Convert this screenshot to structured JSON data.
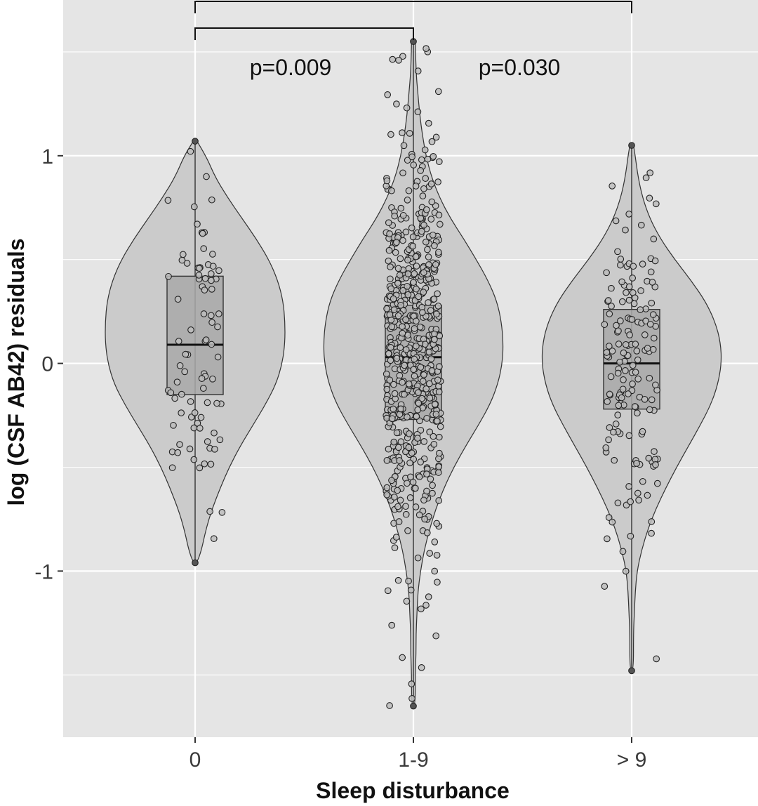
{
  "chart_data": {
    "type": "violin",
    "xlabel": "Sleep disturbance",
    "ylabel": "log (CSF AB42) residuals",
    "categories": [
      "0",
      "1-9",
      "> 9"
    ],
    "ylim": [
      -1.8,
      1.75
    ],
    "yticks": [
      -1,
      0,
      1
    ],
    "yticks_labels": [
      "-1",
      "0",
      "1"
    ],
    "grid": true,
    "background": "#e5e5e5",
    "violin_fill": "#cbcbcb",
    "box_fill": "#a9a9a9",
    "point_fill": "#bdbdbd",
    "groups": [
      {
        "category": "0",
        "box": {
          "q1": -0.15,
          "median": 0.09,
          "q3": 0.42,
          "whisker_low": -0.96,
          "whisker_high": 1.07
        },
        "violin": [
          [
            1.07,
            0.02
          ],
          [
            1.0,
            0.12
          ],
          [
            0.9,
            0.22
          ],
          [
            0.8,
            0.36
          ],
          [
            0.7,
            0.52
          ],
          [
            0.6,
            0.68
          ],
          [
            0.5,
            0.82
          ],
          [
            0.4,
            0.92
          ],
          [
            0.3,
            0.98
          ],
          [
            0.2,
            1.0
          ],
          [
            0.1,
            1.0
          ],
          [
            0.0,
            0.97
          ],
          [
            -0.1,
            0.9
          ],
          [
            -0.2,
            0.78
          ],
          [
            -0.3,
            0.64
          ],
          [
            -0.4,
            0.5
          ],
          [
            -0.5,
            0.38
          ],
          [
            -0.6,
            0.28
          ],
          [
            -0.7,
            0.19
          ],
          [
            -0.8,
            0.12
          ],
          [
            -0.9,
            0.07
          ],
          [
            -0.96,
            0.02
          ]
        ],
        "n_points": 85
      },
      {
        "category": "1-9",
        "box": {
          "q1": -0.27,
          "median": 0.03,
          "q3": 0.28,
          "whisker_low": -1.65,
          "whisker_high": 1.55
        },
        "violin": [
          [
            1.55,
            0.02
          ],
          [
            1.4,
            0.03
          ],
          [
            1.3,
            0.05
          ],
          [
            1.2,
            0.07
          ],
          [
            1.1,
            0.1
          ],
          [
            1.0,
            0.14
          ],
          [
            0.9,
            0.2
          ],
          [
            0.8,
            0.29
          ],
          [
            0.7,
            0.41
          ],
          [
            0.6,
            0.56
          ],
          [
            0.5,
            0.7
          ],
          [
            0.4,
            0.83
          ],
          [
            0.3,
            0.93
          ],
          [
            0.2,
            0.98
          ],
          [
            0.1,
            1.0
          ],
          [
            0.0,
            0.99
          ],
          [
            -0.1,
            0.94
          ],
          [
            -0.2,
            0.85
          ],
          [
            -0.3,
            0.72
          ],
          [
            -0.4,
            0.58
          ],
          [
            -0.5,
            0.45
          ],
          [
            -0.6,
            0.34
          ],
          [
            -0.7,
            0.25
          ],
          [
            -0.8,
            0.18
          ],
          [
            -0.9,
            0.12
          ],
          [
            -1.0,
            0.08
          ],
          [
            -1.1,
            0.05
          ],
          [
            -1.2,
            0.04
          ],
          [
            -1.3,
            0.03
          ],
          [
            -1.4,
            0.03
          ],
          [
            -1.5,
            0.02
          ],
          [
            -1.65,
            0.02
          ]
        ],
        "n_points": 620
      },
      {
        "category": "> 9",
        "box": {
          "q1": -0.22,
          "median": 0.0,
          "q3": 0.26,
          "whisker_low": -1.48,
          "whisker_high": 1.05
        },
        "violin": [
          [
            1.05,
            0.02
          ],
          [
            1.0,
            0.04
          ],
          [
            0.9,
            0.07
          ],
          [
            0.8,
            0.12
          ],
          [
            0.7,
            0.2
          ],
          [
            0.6,
            0.32
          ],
          [
            0.5,
            0.48
          ],
          [
            0.4,
            0.66
          ],
          [
            0.3,
            0.82
          ],
          [
            0.2,
            0.93
          ],
          [
            0.1,
            0.99
          ],
          [
            0.0,
            1.0
          ],
          [
            -0.1,
            0.96
          ],
          [
            -0.2,
            0.88
          ],
          [
            -0.3,
            0.76
          ],
          [
            -0.4,
            0.63
          ],
          [
            -0.5,
            0.5
          ],
          [
            -0.6,
            0.38
          ],
          [
            -0.7,
            0.27
          ],
          [
            -0.8,
            0.18
          ],
          [
            -0.9,
            0.11
          ],
          [
            -1.0,
            0.06
          ],
          [
            -1.1,
            0.04
          ],
          [
            -1.2,
            0.03
          ],
          [
            -1.3,
            0.02
          ],
          [
            -1.48,
            0.02
          ]
        ],
        "n_points": 160
      }
    ],
    "comparisons": [
      {
        "from": "0",
        "to": "1-9",
        "label": "p=0.009"
      },
      {
        "from": "0",
        "to": "> 9",
        "label": "p=0.030"
      }
    ]
  }
}
